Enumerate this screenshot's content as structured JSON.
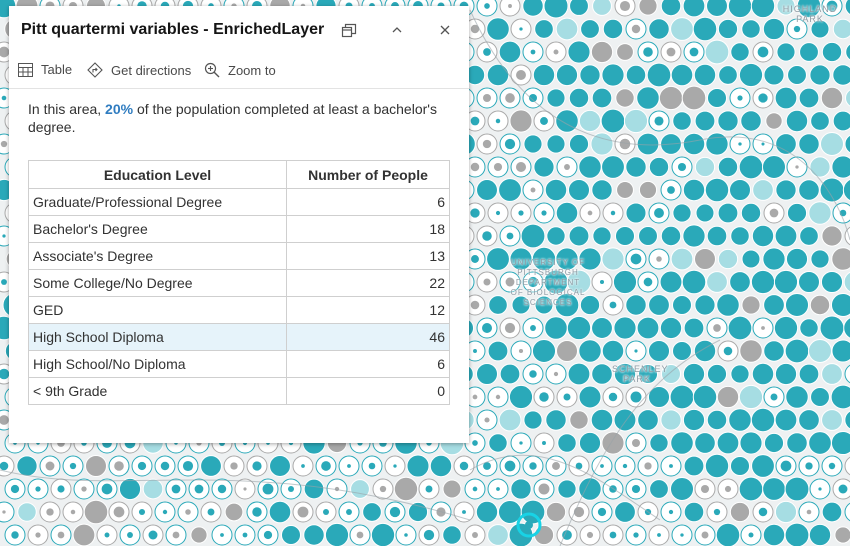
{
  "popup": {
    "title": "Pitt quartermi variables - EnrichedLayer",
    "actions": {
      "table": "Table",
      "directions": "Get directions",
      "zoom": "Zoom to"
    },
    "summary": {
      "prefix": "In this area, ",
      "percent": "20%",
      "suffix": " of the population completed at least a bachelor's degree."
    },
    "table": {
      "headers": [
        "Education Level",
        "Number of People"
      ],
      "rows": [
        {
          "level": "Graduate/Professional Degree",
          "count": "6"
        },
        {
          "level": "Bachelor's Degree",
          "count": "18"
        },
        {
          "level": "Associate's Degree",
          "count": "13"
        },
        {
          "level": "Some College/No Degree",
          "count": "22"
        },
        {
          "level": "GED",
          "count": "12"
        },
        {
          "level": "High School Diploma",
          "count": "46"
        },
        {
          "level": "High School/No Diploma",
          "count": "6"
        },
        {
          "level": "< 9th Grade",
          "count": "0"
        }
      ],
      "highlighted_row": 5
    }
  },
  "map": {
    "labels": {
      "highland_park": "HIGHLAND PARK",
      "university": "UNIVERSITY OF PITTSBURGH DEPARTMENT OF BIOLOGICAL SCIENCES",
      "schenley_park": "SCHENLEY PARK"
    }
  },
  "colors": {
    "accent": "#2f7cc0",
    "symbol_teal": "#2aa9b9",
    "symbol_light": "#a6dde3",
    "symbol_gray": "#a9a9a9",
    "selection": "#18d3e6"
  }
}
